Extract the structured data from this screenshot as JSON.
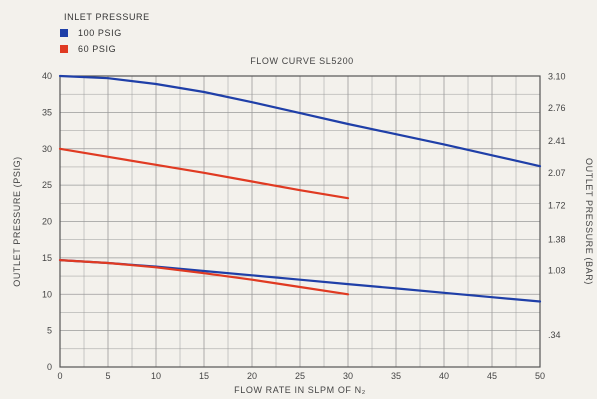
{
  "chart_data": {
    "type": "line",
    "title": "FLOW CURVE SL5200",
    "xlabel": "FLOW RATE IN SLPM OF N₂",
    "ylabel_left": "OUTLET PRESSURE (PSIG)",
    "ylabel_right": "OUTLET PRESSURE (BAR)",
    "xlim": [
      0,
      50
    ],
    "ylim": [
      0,
      40
    ],
    "x_ticks": [
      "0",
      "5",
      "10",
      "15",
      "20",
      "25",
      "30",
      "35",
      "40",
      "45",
      "50"
    ],
    "y_ticks_left": [
      "0",
      "5",
      "10",
      "15",
      "20",
      "25",
      "30",
      "35",
      "40"
    ],
    "y_ticks_right": [
      {
        "y": 4.93,
        "label": ".34"
      },
      {
        "y": 14.94,
        "label": "1.03"
      },
      {
        "y": 19.72,
        "label": "1.38"
      },
      {
        "y": 24.94,
        "label": "1.72"
      },
      {
        "y": 30.02,
        "label": "2.07"
      },
      {
        "y": 34.95,
        "label": "2.41"
      },
      {
        "y": 40.03,
        "label": "2.76"
      },
      {
        "y": 44.96,
        "label": "3.10"
      }
    ],
    "grid": true,
    "legend": {
      "title": "INLET PRESSURE",
      "position": "top-left",
      "items": [
        {
          "label": "100 PSIG",
          "color": "#1f3fa8"
        },
        {
          "label": "60 PSIG",
          "color": "#e03a22"
        }
      ]
    },
    "series": [
      {
        "name": "100 PSIG",
        "color": "#1f3fa8",
        "x": [
          0,
          5,
          10,
          15,
          20,
          25,
          30,
          35,
          40,
          45,
          50
        ],
        "y": [
          40,
          39.7,
          38.9,
          37.8,
          36.4,
          34.9,
          33.4,
          32.0,
          30.6,
          29.1,
          27.6
        ]
      },
      {
        "name": "60 PSIG",
        "color": "#e03a22",
        "x": [
          0,
          5,
          10,
          15,
          20,
          25,
          30
        ],
        "y": [
          30,
          28.9,
          27.8,
          26.7,
          25.5,
          24.3,
          23.2
        ]
      },
      {
        "name": "100 PSIG",
        "color": "#1f3fa8",
        "x": [
          0,
          5,
          10,
          15,
          20,
          25,
          30,
          35,
          40,
          45,
          50
        ],
        "y": [
          14.7,
          14.3,
          13.8,
          13.2,
          12.6,
          12.0,
          11.4,
          10.8,
          10.2,
          9.6,
          9.0
        ]
      },
      {
        "name": "60 PSIG",
        "color": "#e03a22",
        "x": [
          0,
          5,
          10,
          15,
          20,
          25,
          30
        ],
        "y": [
          14.7,
          14.3,
          13.7,
          12.9,
          12.0,
          11.0,
          10.0
        ]
      }
    ]
  }
}
